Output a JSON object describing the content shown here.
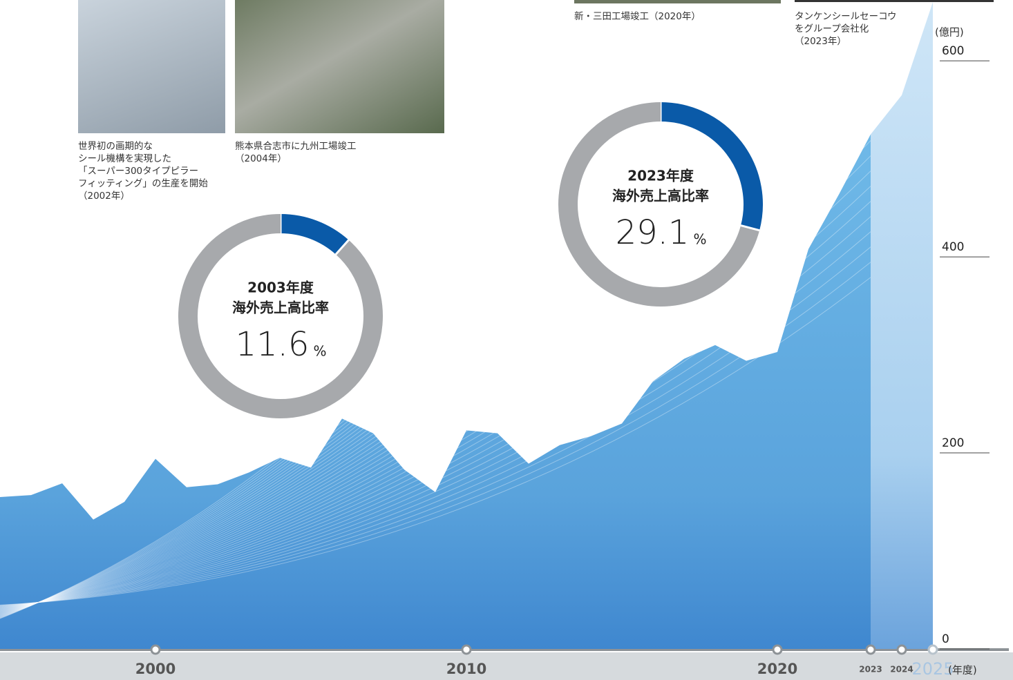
{
  "chart_data": [
    {
      "type": "area",
      "x": [
        1995,
        1996,
        1997,
        1998,
        1999,
        2000,
        2001,
        2002,
        2003,
        2004,
        2005,
        2006,
        2007,
        2008,
        2009,
        2010,
        2011,
        2012,
        2013,
        2014,
        2015,
        2016,
        2017,
        2018,
        2019,
        2020,
        2021,
        2022,
        2023,
        2024,
        2025
      ],
      "series": [
        {
          "color": "#6fb5e3",
          "values": [
            155,
            157,
            169,
            132,
            150,
            194,
            165,
            168,
            180,
            195,
            185,
            235,
            220,
            183,
            160,
            223,
            220,
            189,
            208,
            217,
            230,
            273,
            296,
            310,
            294,
            303,
            408,
            465,
            525,
            null,
            null
          ]
        },
        {
          "color": "#bddcf2",
          "values": [
            null,
            null,
            null,
            null,
            null,
            null,
            null,
            null,
            null,
            null,
            null,
            null,
            null,
            null,
            null,
            null,
            null,
            null,
            null,
            null,
            null,
            null,
            null,
            null,
            null,
            null,
            null,
            null,
            525,
            565,
            660
          ]
        }
      ],
      "xlim": [
        1995,
        2025
      ],
      "ylim": [
        0,
        660
      ],
      "xticks": [
        2000,
        2010,
        2020,
        2023,
        2024,
        2025
      ],
      "yticks": [
        0,
        200,
        400,
        600
      ],
      "y_label": "(億円)",
      "x_label": "(年度)"
    },
    {
      "type": "pie",
      "title": [
        "2003年度",
        "海外売上高比率"
      ],
      "values": [
        11.6,
        88.4
      ],
      "unit": "%",
      "colors": [
        "#0a5aa8",
        "#a7a9ac"
      ]
    },
    {
      "type": "pie",
      "title": [
        "2023年度",
        "海外売上高比率"
      ],
      "values": [
        29.1,
        70.9
      ],
      "unit": "%",
      "colors": [
        "#0a5aa8",
        "#a7a9ac"
      ]
    }
  ],
  "photos": [
    {
      "caption": [
        "世界初の画期的な",
        "シール機構を実現した",
        "「スーパー300タイプピラー",
        "フィッティング」の生産を開始",
        "（2002年）"
      ]
    },
    {
      "caption": [
        "熊本県合志市に九州工場竣工",
        "（2004年）"
      ]
    },
    {
      "caption": [
        "新・三田工場竣工（2020年）"
      ]
    },
    {
      "caption": [
        "タンケンシールセーコウ",
        "をグループ会社化",
        "（2023年）"
      ]
    }
  ]
}
